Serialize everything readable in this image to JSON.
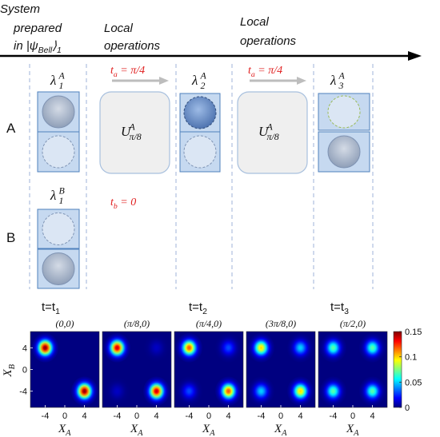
{
  "header": {
    "line1": "System",
    "line2": "prepared",
    "line3": [
      "in |ψ",
      "Bell",
      "⟩",
      "1"
    ]
  },
  "operations_labels": [
    [
      "Local",
      "operations"
    ],
    [
      "Local",
      "operations"
    ]
  ],
  "rows": [
    "A",
    "B"
  ],
  "states": [
    {
      "symbol": "λ",
      "sup": "A",
      "sub": "1"
    },
    {
      "symbol": "λ",
      "sup": "B",
      "sub": "1"
    },
    {
      "symbol": "λ",
      "sup": "A",
      "sub": "2"
    },
    {
      "symbol": "λ",
      "sup": "A",
      "sub": "3"
    }
  ],
  "operators": [
    {
      "symbol": "U",
      "sup": "A",
      "sub": "π/8"
    },
    {
      "symbol": "U",
      "sup": "A",
      "sub": "π/8"
    }
  ],
  "time_a": [
    {
      "t": "t",
      "sub": "a",
      "eq": " = π/4"
    },
    {
      "t": "t",
      "sub": "a",
      "eq": " = π/4"
    }
  ],
  "time_b": {
    "t": "t",
    "sub": "b",
    "eq": " = 0"
  },
  "snapshots": [
    {
      "t": "t=t",
      "sub": "1"
    },
    {
      "t": "t=t",
      "sub": "2"
    },
    {
      "t": "t=t",
      "sub": "3"
    }
  ],
  "chart_data": {
    "type": "heatmap",
    "colormap": "jet",
    "xlabel": {
      "symbol": "X",
      "sub": "A"
    },
    "ylabel": {
      "symbol": "X",
      "sub": "B"
    },
    "xlim": [
      -7,
      7
    ],
    "ylim": [
      -7,
      7
    ],
    "xticks": [
      -4,
      0,
      4
    ],
    "yticks": [
      -4,
      0,
      4
    ],
    "colorbar": {
      "lim": [
        0,
        0.15
      ],
      "ticks": [
        0,
        0.05,
        0.1,
        0.15
      ]
    },
    "panels": [
      {
        "title": "(0,0)",
        "peaks": [
          {
            "x": -4,
            "y": 4,
            "value": 0.15
          },
          {
            "x": 4,
            "y": -4,
            "value": 0.15
          }
        ]
      },
      {
        "title": "(π/8,0)",
        "peaks": [
          {
            "x": -4,
            "y": 4,
            "value": 0.14
          },
          {
            "x": 4,
            "y": -4,
            "value": 0.14
          },
          {
            "x": 4,
            "y": 4,
            "value": 0.01
          },
          {
            "x": -4,
            "y": -4,
            "value": 0.01
          }
        ]
      },
      {
        "title": "(π/4,0)",
        "peaks": [
          {
            "x": -4,
            "y": 4,
            "value": 0.12
          },
          {
            "x": 4,
            "y": -4,
            "value": 0.12
          },
          {
            "x": 4,
            "y": 4,
            "value": 0.03
          },
          {
            "x": -4,
            "y": -4,
            "value": 0.03
          }
        ]
      },
      {
        "title": "(3π/8,0)",
        "peaks": [
          {
            "x": -4,
            "y": 4,
            "value": 0.1
          },
          {
            "x": 4,
            "y": -4,
            "value": 0.1
          },
          {
            "x": 4,
            "y": 4,
            "value": 0.05
          },
          {
            "x": -4,
            "y": -4,
            "value": 0.05
          }
        ]
      },
      {
        "title": "(π/2,0)",
        "peaks": [
          {
            "x": -4,
            "y": 4,
            "value": 0.07
          },
          {
            "x": 4,
            "y": -4,
            "value": 0.07
          },
          {
            "x": 4,
            "y": 4,
            "value": 0.07
          },
          {
            "x": -4,
            "y": -4,
            "value": 0.07
          }
        ]
      }
    ]
  }
}
